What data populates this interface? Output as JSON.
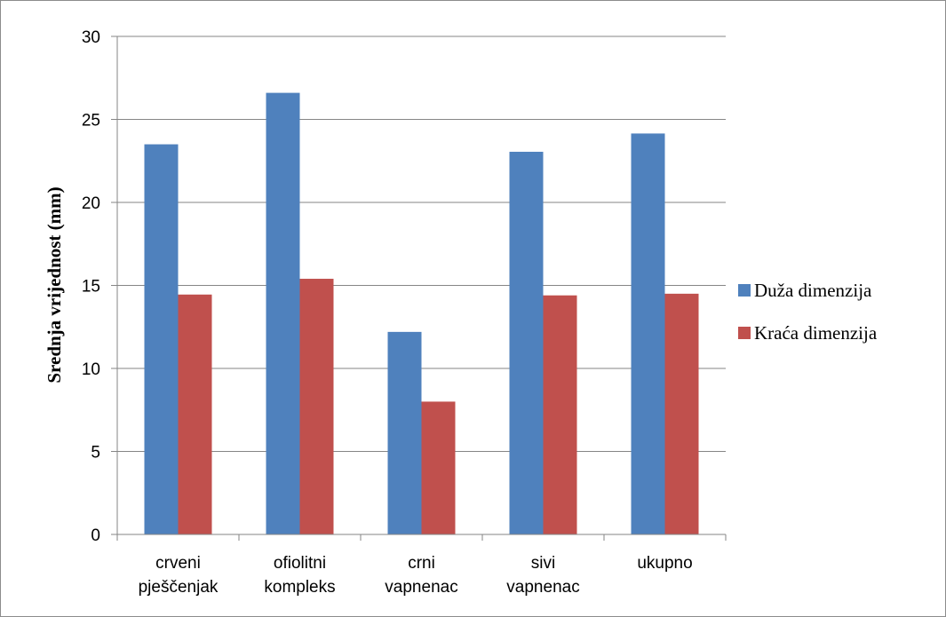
{
  "chart_data": {
    "type": "bar",
    "title": "",
    "xlabel": "",
    "ylabel": "Srednja vrijednost (mm)",
    "categories": [
      [
        "crveni",
        "pješčenjak"
      ],
      [
        "ofiolitni",
        "kompleks"
      ],
      [
        "crni",
        "vapnenac"
      ],
      [
        "sivi",
        "vapnenac"
      ],
      [
        "ukupno"
      ]
    ],
    "series": [
      {
        "name": "Duža dimenzija",
        "values": [
          23.5,
          26.6,
          12.2,
          23.05,
          24.15
        ],
        "color": "#4f81bd"
      },
      {
        "name": "Kraća dimenzija",
        "values": [
          14.45,
          15.4,
          8.0,
          14.4,
          14.5
        ],
        "color": "#c0504d"
      }
    ],
    "ylim": [
      0,
      30
    ],
    "yticks": [
      0,
      5,
      10,
      15,
      20,
      25,
      30
    ],
    "grid": true,
    "legend_position": "right"
  }
}
